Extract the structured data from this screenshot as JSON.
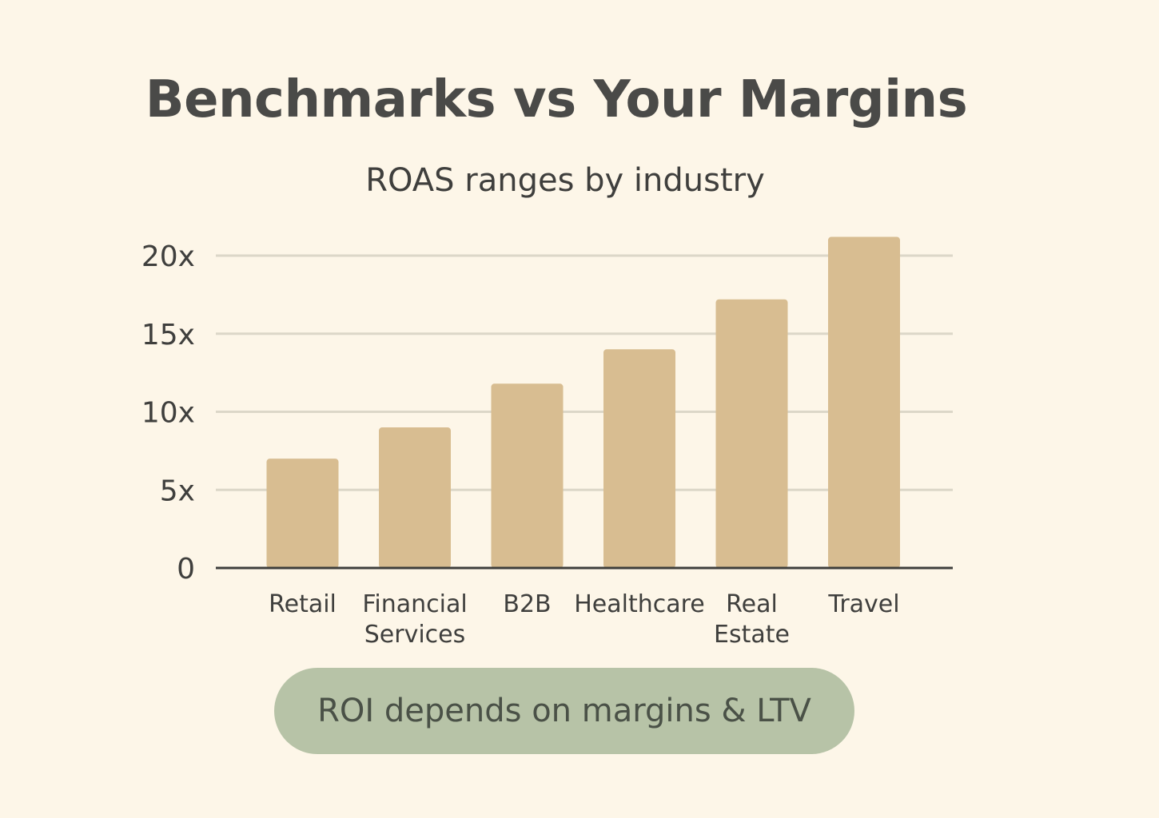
{
  "title": "Benchmarks vs Your Margins",
  "subtitle": "ROAS ranges by industry",
  "colors": {
    "background": "#fdf6e8",
    "bar": "#d8bd91",
    "grid": "#dcd7c8",
    "axis": "#3e3e3c",
    "text": "#3f3f3d",
    "pill": "#b7c3a7"
  },
  "chart_data": {
    "type": "bar",
    "title": "ROAS ranges by industry",
    "xlabel": "",
    "ylabel": "",
    "categories": [
      [
        "Retail"
      ],
      [
        "Financial",
        "Services"
      ],
      [
        "B2B"
      ],
      [
        "Healthcare"
      ],
      [
        "Real",
        "Estate"
      ],
      [
        "Travel"
      ]
    ],
    "values": [
      7,
      9,
      11.8,
      14,
      17.2,
      21.2
    ],
    "ylim": [
      0,
      22
    ],
    "yticks": [
      0,
      5,
      10,
      15,
      20
    ],
    "ytick_labels": [
      "0",
      "5x",
      "10x",
      "15x",
      "20x"
    ],
    "grid": true
  },
  "callout": "ROI depends on margins & LTV"
}
